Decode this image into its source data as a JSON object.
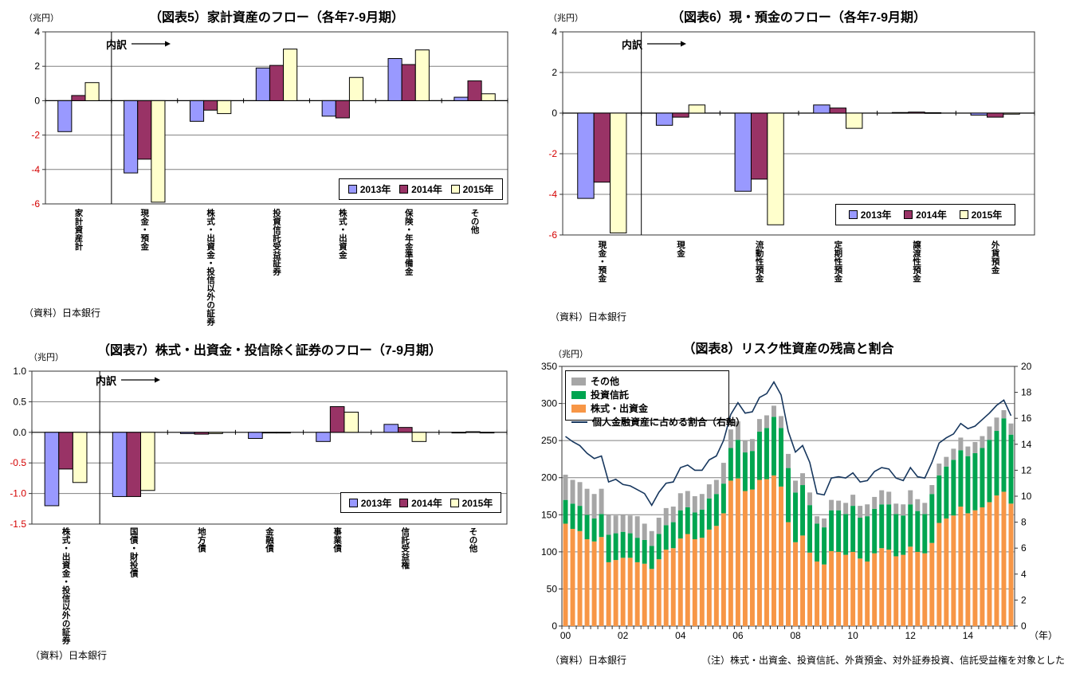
{
  "chart_data": [
    {
      "id": "fig5",
      "type": "grouped_bar",
      "title": "（図表5）家計資産のフロー（各年7-9月期）",
      "unit_label": "（兆円）",
      "breakdown_label": "内訳",
      "source": "（資料）日本銀行",
      "categories": [
        "家計資産計",
        "現金・預金",
        "株式・出資金・投信以外の証券",
        "投資信託受益証券",
        "株式・出資金",
        "保険・年金準備金",
        "その他"
      ],
      "series": [
        {
          "name": "2013年",
          "color": "#9999FF",
          "values": [
            -1.8,
            -4.2,
            -1.2,
            1.9,
            -0.9,
            2.45,
            0.2
          ]
        },
        {
          "name": "2014年",
          "color": "#993366",
          "values": [
            0.3,
            -3.4,
            -0.55,
            2.05,
            -1.0,
            2.1,
            1.15
          ]
        },
        {
          "name": "2015年",
          "color": "#FFFFCC",
          "values": [
            1.05,
            -5.9,
            -0.75,
            3.0,
            1.35,
            2.95,
            0.4
          ]
        }
      ],
      "ylim": [
        -6,
        4
      ],
      "ytick_step": 2,
      "ytick_decimals": 0,
      "separator_after_index": 0,
      "negative_tick_color": "#D40000"
    },
    {
      "id": "fig6",
      "type": "grouped_bar",
      "title": "（図表6）現・預金のフロー（各年7-9月期）",
      "unit_label": "（兆円）",
      "breakdown_label": "内訳",
      "source": "（資料）日本銀行",
      "categories": [
        "現金・預金",
        "現金",
        "流動性預金",
        "定期性預金",
        "譲渡性預金",
        "外貨預金"
      ],
      "series": [
        {
          "name": "2013年",
          "color": "#9999FF",
          "values": [
            -4.2,
            -0.6,
            -3.85,
            0.4,
            0.03,
            -0.1
          ]
        },
        {
          "name": "2014年",
          "color": "#993366",
          "values": [
            -3.4,
            -0.2,
            -3.25,
            0.25,
            0.05,
            -0.2
          ]
        },
        {
          "name": "2015年",
          "color": "#FFFFCC",
          "values": [
            -5.9,
            0.4,
            -5.5,
            -0.75,
            0.02,
            -0.05
          ]
        }
      ],
      "ylim": [
        -6,
        4
      ],
      "ytick_step": 2,
      "ytick_decimals": 0,
      "separator_after_index": 0,
      "negative_tick_color": "#D40000"
    },
    {
      "id": "fig7",
      "type": "grouped_bar",
      "title": "（図表7）株式・出資金・投信除く証券のフロー（7-9月期）",
      "unit_label": "（兆円）",
      "breakdown_label": "内訳",
      "source": "（資料）日本銀行",
      "categories": [
        "株式・出資金・投信以外の証券",
        "国債・財投債",
        "地方債",
        "金融債",
        "事業債",
        "信託受益権",
        "その他"
      ],
      "series": [
        {
          "name": "2013年",
          "color": "#9999FF",
          "values": [
            -1.2,
            -1.05,
            -0.02,
            -0.1,
            -0.15,
            0.13,
            0.0
          ]
        },
        {
          "name": "2014年",
          "color": "#993366",
          "values": [
            -0.6,
            -1.05,
            -0.03,
            -0.01,
            0.42,
            0.08,
            0.01
          ]
        },
        {
          "name": "2015年",
          "color": "#FFFFCC",
          "values": [
            -0.82,
            -0.95,
            -0.02,
            -0.01,
            0.33,
            -0.15,
            0.0
          ]
        }
      ],
      "ylim": [
        -1.5,
        1.0
      ],
      "ytick_step": 0.5,
      "ytick_decimals": 1,
      "separator_after_index": 0,
      "negative_tick_color": "#D40000"
    },
    {
      "id": "fig8",
      "type": "stacked_bar_line",
      "title": "（図表8）リスク性資産の残高と割合",
      "unit_label": "（兆円）",
      "source": "（資料）日本銀行",
      "note": "（注）株式・出資金、投資信託、外貨預金、対外証券投資、信託受益権を対象とした",
      "x_year_labels": [
        "00",
        "02",
        "04",
        "06",
        "08",
        "10",
        "12",
        "14"
      ],
      "x_axis_suffix": "（年）",
      "left_axis": {
        "min": 0,
        "max": 350,
        "step": 50
      },
      "right_axis": {
        "min": 0,
        "max": 20,
        "step": 2
      },
      "bar_series": [
        {
          "name": "その他",
          "color": "#A6A6A6",
          "values": [
            34,
            32,
            32,
            35,
            33,
            34,
            27,
            24,
            23,
            24,
            29,
            22,
            20,
            22,
            23,
            21,
            23,
            22,
            22,
            21,
            19,
            19,
            28,
            25,
            25,
            16,
            16,
            17,
            17,
            15,
            16,
            19,
            16,
            16,
            17,
            10,
            12,
            14,
            13,
            15,
            15,
            16,
            16,
            16,
            19,
            17,
            14,
            15,
            19,
            16,
            15,
            12,
            16,
            13,
            15,
            17,
            13,
            15,
            16,
            18,
            18,
            11,
            15
          ]
        },
        {
          "name": "投資信託",
          "color": "#00A550",
          "values": [
            32,
            34,
            34,
            33,
            31,
            31,
            37,
            36,
            35,
            33,
            33,
            32,
            31,
            34,
            33,
            35,
            38,
            36,
            36,
            38,
            42,
            43,
            40,
            44,
            52,
            52,
            52,
            65,
            69,
            79,
            79,
            73,
            67,
            68,
            64,
            51,
            50,
            55,
            56,
            55,
            62,
            55,
            61,
            60,
            59,
            61,
            57,
            53,
            57,
            55,
            53,
            66,
            64,
            70,
            75,
            76,
            77,
            77,
            80,
            84,
            87,
            99,
            93
          ]
        },
        {
          "name": "株式・出資金",
          "color": "#F79646",
          "values": [
            138,
            131,
            128,
            117,
            114,
            120,
            86,
            89,
            92,
            92,
            86,
            84,
            77,
            90,
            103,
            105,
            118,
            124,
            117,
            119,
            130,
            135,
            152,
            196,
            199,
            182,
            184,
            197,
            198,
            203,
            188,
            140,
            113,
            122,
            99,
            87,
            83,
            101,
            100,
            96,
            100,
            91,
            87,
            98,
            105,
            103,
            94,
            96,
            107,
            100,
            98,
            112,
            139,
            145,
            149,
            161,
            152,
            156,
            160,
            167,
            176,
            181,
            165
          ]
        }
      ],
      "line_series": {
        "name": "個人金融資産に占める割合（右軸）",
        "color": "#17375E",
        "values": [
          14.6,
          14.2,
          13.9,
          13.3,
          12.9,
          13.1,
          11.1,
          11.3,
          10.9,
          10.8,
          10.5,
          10.2,
          9.3,
          10.3,
          11.0,
          11.1,
          12.2,
          12.4,
          12.0,
          12.0,
          12.8,
          13.1,
          14.3,
          16.3,
          17.2,
          16.4,
          16.5,
          17.6,
          17.9,
          18.8,
          17.8,
          15.0,
          13.4,
          13.9,
          12.6,
          10.2,
          10.1,
          11.4,
          11.5,
          11.4,
          11.8,
          11.1,
          11.2,
          11.9,
          12.2,
          12.1,
          11.4,
          11.2,
          12.2,
          11.5,
          11.4,
          12.6,
          14.1,
          14.5,
          14.8,
          15.6,
          15.2,
          15.4,
          15.9,
          16.4,
          17.0,
          17.4,
          16.2
        ]
      }
    }
  ]
}
